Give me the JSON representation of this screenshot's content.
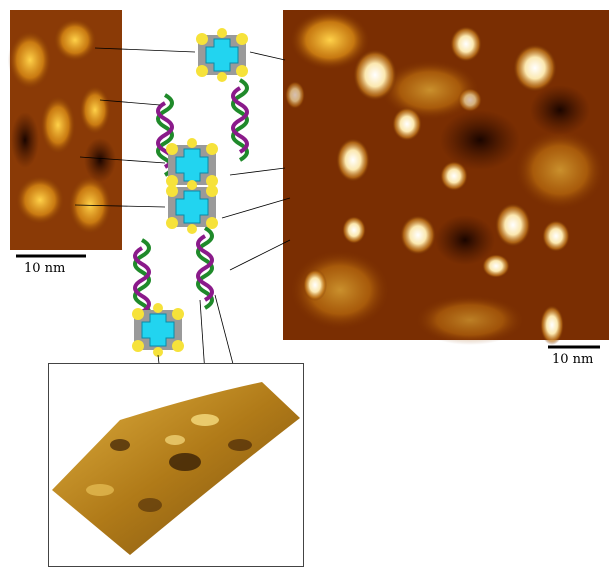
{
  "scale_bars": [
    {
      "label": "10 nm"
    },
    {
      "label": "10 nm"
    }
  ]
}
